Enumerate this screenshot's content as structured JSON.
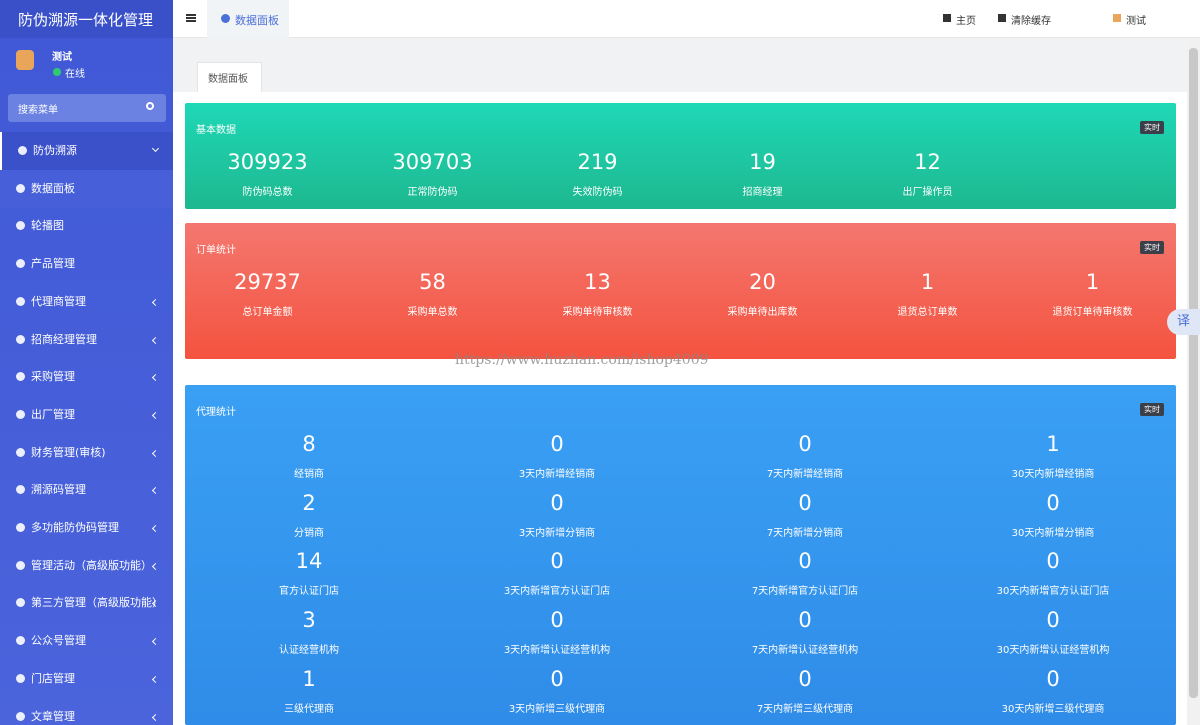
{
  "sidebar": {
    "title": "防伪溯源一体化管理",
    "user": {
      "name": "测试",
      "status": "在线"
    },
    "search": "搜索菜单",
    "menu": [
      "防伪溯源",
      "数据面板",
      "轮播图",
      "产品管理",
      "代理商管理",
      "招商经理管理",
      "采购管理",
      "出厂管理",
      "财务管理(审核)",
      "溯源码管理",
      "多功能防伪码管理",
      "管理活动（高级版功能）",
      "第三方管理（高级版功能）",
      "公众号管理",
      "门店管理",
      "文章管理"
    ]
  },
  "topbar": {
    "tab": "数据面板",
    "links": [
      "主页",
      "清除缓存",
      "测试"
    ]
  },
  "content": {
    "tab": "数据面板",
    "watermark": "https://www.huzhan.com/ishop4009",
    "translate": "译",
    "panels": [
      {
        "title": "基本数据",
        "badge": "实时",
        "stats": [
          {
            "value": 309923,
            "label": "防伪码总数"
          },
          {
            "value": 309703,
            "label": "正常防伪码"
          },
          {
            "value": 219,
            "label": "失效防伪码"
          },
          {
            "value": 19,
            "label": "招商经理"
          },
          {
            "value": 12,
            "label": "出厂操作员"
          }
        ]
      },
      {
        "title": "订单统计",
        "badge": "实时",
        "stats": [
          {
            "value": 29737,
            "label": "总订单金额"
          },
          {
            "value": 58,
            "label": "采购单总数"
          },
          {
            "value": 13,
            "label": "采购单待审核数"
          },
          {
            "value": 20,
            "label": "采购单待出库数"
          },
          {
            "value": 1,
            "label": "退货总订单数"
          },
          {
            "value": 1,
            "label": "退货订单待审核数"
          }
        ]
      },
      {
        "title": "代理统计",
        "badge": "实时",
        "stats": [
          {
            "value": 8,
            "label": "经销商"
          },
          {
            "value": 0,
            "label": "3天内新增经销商"
          },
          {
            "value": 0,
            "label": "7天内新增经销商"
          },
          {
            "value": 1,
            "label": "30天内新增经销商"
          },
          {
            "value": 2,
            "label": "分销商"
          },
          {
            "value": 0,
            "label": "3天内新增分销商"
          },
          {
            "value": 0,
            "label": "7天内新增分销商"
          },
          {
            "value": 0,
            "label": "30天内新增分销商"
          },
          {
            "value": 14,
            "label": "官方认证门店"
          },
          {
            "value": 0,
            "label": "3天内新增官方认证门店"
          },
          {
            "value": 0,
            "label": "7天内新增官方认证门店"
          },
          {
            "value": 0,
            "label": "30天内新增官方认证门店"
          },
          {
            "value": 3,
            "label": "认证经营机构"
          },
          {
            "value": 0,
            "label": "3天内新增认证经营机构"
          },
          {
            "value": 0,
            "label": "7天内新增认证经营机构"
          },
          {
            "value": 0,
            "label": "30天内新增认证经营机构"
          },
          {
            "value": 1,
            "label": "三级代理商"
          },
          {
            "value": 0,
            "label": "3天内新增三级代理商"
          },
          {
            "value": 0,
            "label": "7天内新增三级代理商"
          },
          {
            "value": 0,
            "label": "30天内新增三级代理商"
          }
        ]
      }
    ]
  }
}
